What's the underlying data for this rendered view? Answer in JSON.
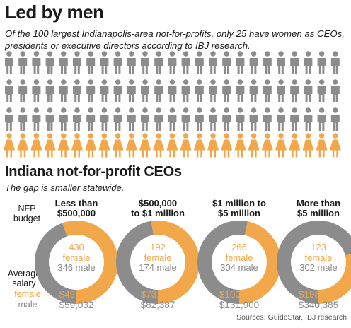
{
  "header": {
    "title": "Led by men",
    "subtitle": "Of the 100 largest Indianapolis-area not-for-profits, only 25 have women as CEOs, presidents or executive directors according to IBJ research."
  },
  "pictogram": {
    "total": 100,
    "female": 25,
    "columns": 25,
    "rows": 4,
    "female_row": 4,
    "colors": {
      "male": "#8c8c8c",
      "female": "#f2a74a"
    }
  },
  "section2": {
    "title": "Indiana not-for-profit CEOs",
    "subtitle": "The gap is smaller statewide.",
    "row_label_budget": [
      "NFP",
      "budget"
    ],
    "row_label_salary": [
      "Average",
      "salary"
    ],
    "legend_female": "female",
    "legend_male": "male"
  },
  "chart_data": {
    "type": "donut",
    "categories": [
      "Less than $500,000",
      "$500,000 to $1 million",
      "$1 million to $5 million",
      "More than $5 million"
    ],
    "bracket_lines": [
      [
        "Less than",
        "$500,000"
      ],
      [
        "$500,000",
        "to $1 million"
      ],
      [
        "$1 million to",
        "$5 million"
      ],
      [
        "More than",
        "$5 million"
      ]
    ],
    "series": [
      {
        "name": "female",
        "color": "#f2a74a",
        "counts": [
          430,
          192,
          266,
          123
        ],
        "avg_salary": [
          "$49,250",
          "$73,664",
          "$100,923",
          "$198,514"
        ]
      },
      {
        "name": "male",
        "color": "#8c8c8c",
        "counts": [
          346,
          174,
          304,
          302
        ],
        "avg_salary": [
          "$59,032",
          "$82,387",
          "$131,900",
          "$340,385"
        ]
      }
    ],
    "count_labels": {
      "female": [
        "430 female",
        "192 female",
        "266 female",
        "123 female"
      ],
      "male": [
        "346 male",
        "174 male",
        "304 male",
        "302 male"
      ]
    }
  },
  "footer": {
    "sources": "Sources: GuideStar, IBJ research"
  }
}
